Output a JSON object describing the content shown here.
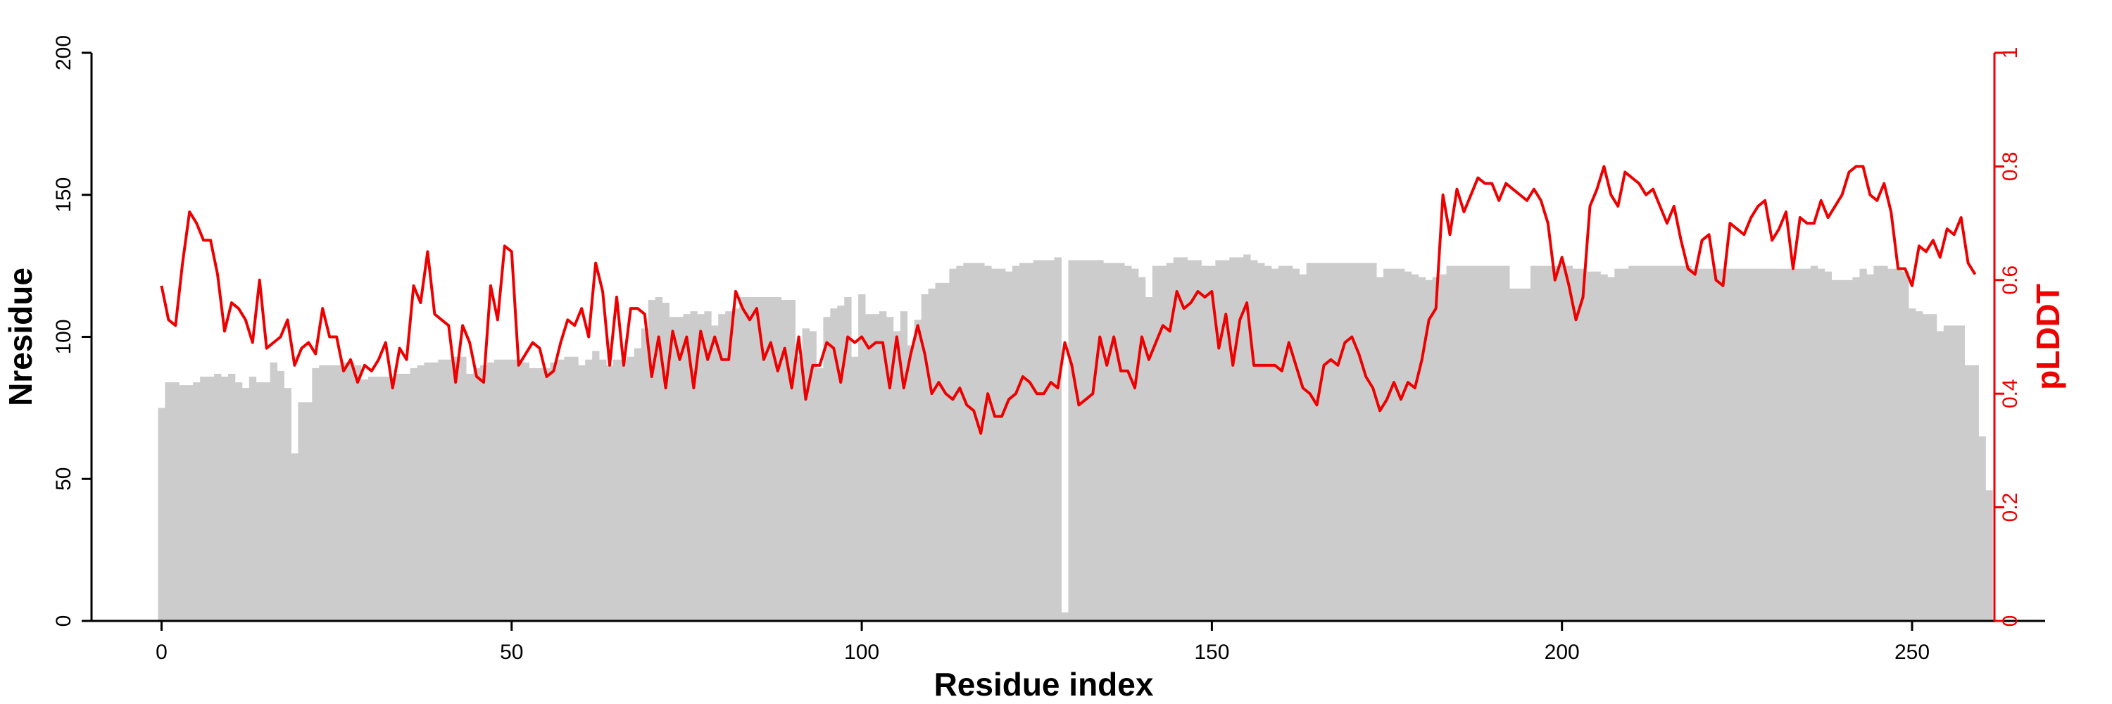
{
  "chart_data": {
    "type": "bar",
    "xlabel": "Residue index",
    "ylabel": "Nresidue",
    "y2label": "pLDDT",
    "xlim": [
      -10,
      269
    ],
    "ylim": [
      0,
      200
    ],
    "y2lim": [
      0,
      1
    ],
    "xticks": [
      0,
      50,
      100,
      150,
      200,
      250
    ],
    "yticks": [
      0,
      50,
      100,
      150,
      200
    ],
    "y2ticks": [
      0,
      0.2,
      0.4,
      0.6,
      0.8,
      1
    ],
    "bar_color": "#cccccc",
    "line_color": "#ee0000",
    "grid": false,
    "series": [
      {
        "name": "Nresidue",
        "kind": "bar",
        "axis": "left",
        "x_start": 0,
        "values": [
          75,
          84,
          84,
          83,
          83,
          84,
          86,
          86,
          87,
          86,
          87,
          84,
          82,
          86,
          84,
          84,
          91,
          88,
          82,
          59,
          77,
          77,
          89,
          90,
          90,
          90,
          91,
          91,
          90,
          85,
          86,
          86,
          86,
          86,
          87,
          87,
          89,
          90,
          91,
          91,
          92,
          92,
          93,
          93,
          87,
          89,
          90,
          91,
          92,
          92,
          92,
          92,
          91,
          89,
          89,
          89,
          91,
          92,
          93,
          93,
          90,
          92,
          95,
          92,
          90,
          92,
          92,
          93,
          96,
          103,
          113,
          114,
          112,
          107,
          107,
          108,
          109,
          108,
          109,
          104,
          108,
          109,
          110,
          114,
          114,
          114,
          114,
          114,
          114,
          113,
          113,
          93,
          103,
          102,
          89,
          107,
          110,
          111,
          114,
          93,
          115,
          108,
          108,
          109,
          107,
          102,
          109,
          97,
          106,
          115,
          117,
          119,
          119,
          124,
          125,
          126,
          126,
          126,
          125,
          124,
          124,
          123,
          125,
          126,
          126,
          127,
          127,
          127,
          128,
          3,
          127,
          127,
          127,
          127,
          127,
          126,
          126,
          126,
          125,
          124,
          121,
          114,
          125,
          125,
          126,
          128,
          128,
          127,
          127,
          125,
          125,
          127,
          127,
          128,
          128,
          129,
          127,
          126,
          125,
          124,
          125,
          125,
          124,
          122,
          126,
          126,
          126,
          126,
          126,
          126,
          126,
          126,
          126,
          126,
          121,
          124,
          124,
          124,
          123,
          122,
          121,
          120,
          121,
          122,
          125,
          125,
          125,
          125,
          125,
          125,
          125,
          125,
          125,
          117,
          117,
          117,
          125,
          125,
          125,
          125,
          125,
          125,
          124,
          124,
          123,
          123,
          122,
          121,
          124,
          124,
          125,
          125,
          125,
          125,
          125,
          125,
          125,
          125,
          125,
          124,
          124,
          124,
          124,
          124,
          124,
          124,
          124,
          124,
          124,
          124,
          124,
          124,
          124,
          124,
          124,
          124,
          125,
          124,
          123,
          120,
          120,
          120,
          121,
          124,
          122,
          125,
          125,
          124,
          124,
          123,
          110,
          109,
          108,
          108,
          102,
          104,
          104,
          104,
          90,
          90,
          65,
          46
        ]
      },
      {
        "name": "pLDDT",
        "kind": "line",
        "axis": "right",
        "x_start": 0,
        "values": [
          0.59,
          0.53,
          0.52,
          0.63,
          0.72,
          0.7,
          0.67,
          0.67,
          0.61,
          0.51,
          0.56,
          0.55,
          0.53,
          0.49,
          0.6,
          0.48,
          0.49,
          0.5,
          0.53,
          0.45,
          0.48,
          0.49,
          0.47,
          0.55,
          0.5,
          0.5,
          0.44,
          0.46,
          0.42,
          0.45,
          0.44,
          0.46,
          0.49,
          0.41,
          0.48,
          0.46,
          0.59,
          0.56,
          0.65,
          0.54,
          0.53,
          0.52,
          0.42,
          0.52,
          0.49,
          0.43,
          0.42,
          0.59,
          0.53,
          0.66,
          0.65,
          0.45,
          0.47,
          0.49,
          0.48,
          0.43,
          0.44,
          0.49,
          0.53,
          0.52,
          0.55,
          0.5,
          0.63,
          0.58,
          0.45,
          0.57,
          0.45,
          0.55,
          0.55,
          0.54,
          0.43,
          0.5,
          0.41,
          0.51,
          0.46,
          0.5,
          0.41,
          0.51,
          0.46,
          0.5,
          0.46,
          0.46,
          0.58,
          0.55,
          0.53,
          0.55,
          0.46,
          0.49,
          0.44,
          0.48,
          0.41,
          0.5,
          0.39,
          0.45,
          0.45,
          0.49,
          0.48,
          0.42,
          0.5,
          0.49,
          0.5,
          0.48,
          0.49,
          0.49,
          0.41,
          0.5,
          0.41,
          0.47,
          0.52,
          0.47,
          0.4,
          0.42,
          0.4,
          0.39,
          0.41,
          0.38,
          0.37,
          0.33,
          0.4,
          0.36,
          0.36,
          0.39,
          0.4,
          0.43,
          0.42,
          0.4,
          0.4,
          0.42,
          0.41,
          0.49,
          0.45,
          0.38,
          0.39,
          0.4,
          0.5,
          0.45,
          0.5,
          0.44,
          0.44,
          0.41,
          0.5,
          0.46,
          0.49,
          0.52,
          0.51,
          0.58,
          0.55,
          0.56,
          0.58,
          0.57,
          0.58,
          0.48,
          0.54,
          0.45,
          0.53,
          0.56,
          0.45,
          0.45,
          0.45,
          0.45,
          0.44,
          0.49,
          0.45,
          0.41,
          0.4,
          0.38,
          0.45,
          0.46,
          0.45,
          0.49,
          0.5,
          0.47,
          0.43,
          0.41,
          0.37,
          0.39,
          0.42,
          0.39,
          0.42,
          0.41,
          0.46,
          0.53,
          0.55,
          0.75,
          0.68,
          0.76,
          0.72,
          0.75,
          0.78,
          0.77,
          0.77,
          0.74,
          0.77,
          0.76,
          0.75,
          0.74,
          0.76,
          0.74,
          0.7,
          0.6,
          0.64,
          0.59,
          0.53,
          0.57,
          0.73,
          0.76,
          0.8,
          0.75,
          0.73,
          0.79,
          0.78,
          0.77,
          0.75,
          0.76,
          0.73,
          0.7,
          0.73,
          0.67,
          0.62,
          0.61,
          0.67,
          0.68,
          0.6,
          0.59,
          0.7,
          0.69,
          0.68,
          0.71,
          0.73,
          0.74,
          0.67,
          0.69,
          0.72,
          0.62,
          0.71,
          0.7,
          0.7,
          0.74,
          0.71,
          0.73,
          0.75,
          0.79,
          0.8,
          0.8,
          0.75,
          0.74,
          0.77,
          0.72,
          0.62,
          0.62,
          0.59,
          0.66,
          0.65,
          0.67,
          0.64,
          0.69,
          0.68,
          0.71,
          0.63,
          0.61
        ]
      }
    ]
  }
}
